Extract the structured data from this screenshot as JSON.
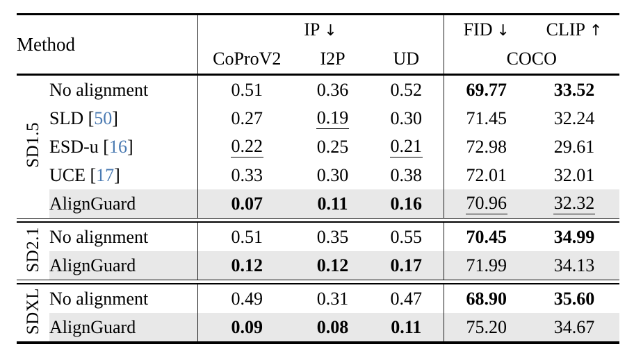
{
  "header": {
    "method": "Method",
    "groups": [
      {
        "label": "IP",
        "arrow": "↓"
      },
      {
        "label": "FID",
        "arrow": "↓"
      },
      {
        "label": "CLIP",
        "arrow": "↑"
      }
    ],
    "ip_sub_columns": [
      "CoProV2",
      "I2P",
      "UD"
    ],
    "quality_sub_column": "COCO"
  },
  "sections": [
    {
      "group_label": "SD1.5",
      "rows": [
        {
          "method": "No alignment",
          "citation": null,
          "highlighted": false,
          "cells": [
            {
              "value": "0.51",
              "bold": false,
              "underline": false
            },
            {
              "value": "0.36",
              "bold": false,
              "underline": false
            },
            {
              "value": "0.52",
              "bold": false,
              "underline": false
            },
            {
              "value": "69.77",
              "bold": true,
              "underline": false
            },
            {
              "value": "33.52",
              "bold": true,
              "underline": false
            }
          ]
        },
        {
          "method": "SLD",
          "citation": "50",
          "highlighted": false,
          "cells": [
            {
              "value": "0.27",
              "bold": false,
              "underline": false
            },
            {
              "value": "0.19",
              "bold": false,
              "underline": true
            },
            {
              "value": "0.30",
              "bold": false,
              "underline": false
            },
            {
              "value": "71.45",
              "bold": false,
              "underline": false
            },
            {
              "value": "32.24",
              "bold": false,
              "underline": false
            }
          ]
        },
        {
          "method": "ESD-u",
          "citation": "16",
          "highlighted": false,
          "cells": [
            {
              "value": "0.22",
              "bold": false,
              "underline": true
            },
            {
              "value": "0.25",
              "bold": false,
              "underline": false
            },
            {
              "value": "0.21",
              "bold": false,
              "underline": true
            },
            {
              "value": "72.98",
              "bold": false,
              "underline": false
            },
            {
              "value": "29.61",
              "bold": false,
              "underline": false
            }
          ]
        },
        {
          "method": "UCE",
          "citation": "17",
          "highlighted": false,
          "cells": [
            {
              "value": "0.33",
              "bold": false,
              "underline": false
            },
            {
              "value": "0.30",
              "bold": false,
              "underline": false
            },
            {
              "value": "0.38",
              "bold": false,
              "underline": false
            },
            {
              "value": "72.01",
              "bold": false,
              "underline": false
            },
            {
              "value": "32.01",
              "bold": false,
              "underline": false
            }
          ]
        },
        {
          "method": "AlignGuard",
          "citation": null,
          "highlighted": true,
          "cells": [
            {
              "value": "0.07",
              "bold": true,
              "underline": false
            },
            {
              "value": "0.11",
              "bold": true,
              "underline": false
            },
            {
              "value": "0.16",
              "bold": true,
              "underline": false
            },
            {
              "value": "70.96",
              "bold": false,
              "underline": true
            },
            {
              "value": "32.32",
              "bold": false,
              "underline": true
            }
          ]
        }
      ]
    },
    {
      "group_label": "SD2.1",
      "rows": [
        {
          "method": "No alignment",
          "citation": null,
          "highlighted": false,
          "cells": [
            {
              "value": "0.51",
              "bold": false,
              "underline": false
            },
            {
              "value": "0.35",
              "bold": false,
              "underline": false
            },
            {
              "value": "0.55",
              "bold": false,
              "underline": false
            },
            {
              "value": "70.45",
              "bold": true,
              "underline": false
            },
            {
              "value": "34.99",
              "bold": true,
              "underline": false
            }
          ]
        },
        {
          "method": "AlignGuard",
          "citation": null,
          "highlighted": true,
          "cells": [
            {
              "value": "0.12",
              "bold": true,
              "underline": false
            },
            {
              "value": "0.12",
              "bold": true,
              "underline": false
            },
            {
              "value": "0.17",
              "bold": true,
              "underline": false
            },
            {
              "value": "71.99",
              "bold": false,
              "underline": false
            },
            {
              "value": "34.13",
              "bold": false,
              "underline": false
            }
          ]
        }
      ]
    },
    {
      "group_label": "SDXL",
      "rows": [
        {
          "method": "No alignment",
          "citation": null,
          "highlighted": false,
          "cells": [
            {
              "value": "0.49",
              "bold": false,
              "underline": false
            },
            {
              "value": "0.31",
              "bold": false,
              "underline": false
            },
            {
              "value": "0.47",
              "bold": false,
              "underline": false
            },
            {
              "value": "68.90",
              "bold": true,
              "underline": false
            },
            {
              "value": "35.60",
              "bold": true,
              "underline": false
            }
          ]
        },
        {
          "method": "AlignGuard",
          "citation": null,
          "highlighted": true,
          "cells": [
            {
              "value": "0.09",
              "bold": true,
              "underline": false
            },
            {
              "value": "0.08",
              "bold": true,
              "underline": false
            },
            {
              "value": "0.11",
              "bold": true,
              "underline": false
            },
            {
              "value": "75.20",
              "bold": false,
              "underline": false
            },
            {
              "value": "34.67",
              "bold": false,
              "underline": false
            }
          ]
        }
      ]
    }
  ],
  "colors": {
    "citation_link": "#4a7ab2",
    "highlight_row": "#e8e8e8",
    "rule": "#000000"
  }
}
